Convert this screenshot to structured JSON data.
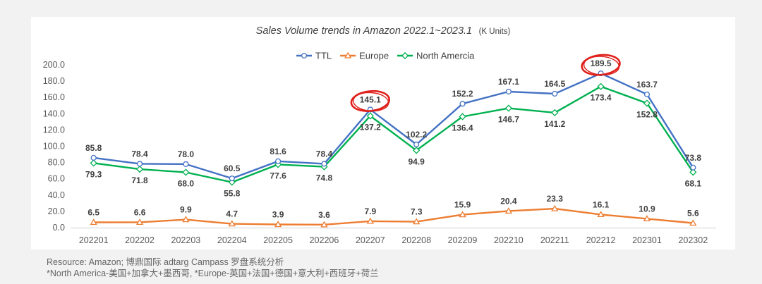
{
  "chart_data": {
    "type": "line",
    "title": "Sales Volume trends in Amazon 2022.1~2023.1",
    "title_unit": "(K Units)",
    "categories": [
      "202201",
      "202202",
      "202203",
      "202204",
      "202205",
      "202206",
      "202207",
      "202208",
      "202209",
      "202210",
      "202211",
      "202212",
      "202301",
      "202302"
    ],
    "ylim": [
      0,
      200
    ],
    "yticks": [
      "0.0",
      "20.0",
      "40.0",
      "60.0",
      "80.0",
      "100.0",
      "120.0",
      "140.0",
      "160.0",
      "180.0",
      "200.0"
    ],
    "grid": false,
    "legend_position": "top-center",
    "series": [
      {
        "name": "TTL",
        "color": "#4472c4",
        "marker": "circle",
        "label_side": "above",
        "values": [
          85.8,
          78.4,
          78.0,
          60.5,
          81.6,
          78.4,
          145.1,
          102.2,
          152.2,
          167.1,
          164.5,
          189.5,
          163.7,
          73.8
        ],
        "labels": [
          "85.8",
          "78.4",
          "78.0",
          "60.5",
          "81.6",
          "78.4",
          "145.1",
          "102.2",
          "152.2",
          "167.1",
          "164.5",
          "189.5",
          "163.7",
          "73.8"
        ]
      },
      {
        "name": "Europe",
        "color": "#ed7d31",
        "marker": "triangle",
        "label_side": "above",
        "values": [
          6.5,
          6.6,
          9.9,
          4.7,
          3.9,
          3.6,
          7.9,
          7.3,
          15.9,
          20.4,
          23.3,
          16.1,
          10.9,
          5.6
        ],
        "labels": [
          "6.5",
          "6.6",
          "9.9",
          "4.7",
          "3.9",
          "3.6",
          "7.9",
          "7.3",
          "15.9",
          "20.4",
          "23.3",
          "16.1",
          "10.9",
          "5.6"
        ]
      },
      {
        "name": "North Amercia",
        "color": "#00b050",
        "marker": "diamond",
        "label_side": "below",
        "values": [
          79.3,
          71.8,
          68.0,
          55.8,
          77.6,
          74.8,
          137.2,
          94.9,
          136.4,
          146.7,
          141.2,
          173.4,
          152.8,
          68.1
        ],
        "labels": [
          "79.3",
          "71.8",
          "68.0",
          "55.8",
          "77.6",
          "74.8",
          "137.2",
          "94.9",
          "136.4",
          "146.7",
          "141.2",
          "173.4",
          "152.8",
          "68.1"
        ]
      }
    ],
    "highlighted_points": [
      {
        "series": "TTL",
        "category": "202207"
      },
      {
        "series": "TTL",
        "category": "202212"
      }
    ],
    "highlight_color": "#e0201b"
  },
  "footnotes": {
    "line1": "Resource: Amazon;  博鼎国际 adtarg Campass 罗盘系统分析",
    "line2": "*North America-美国+加拿大+墨西哥,  *Europe-英国+法国+德国+意大利+西班牙+荷兰"
  }
}
